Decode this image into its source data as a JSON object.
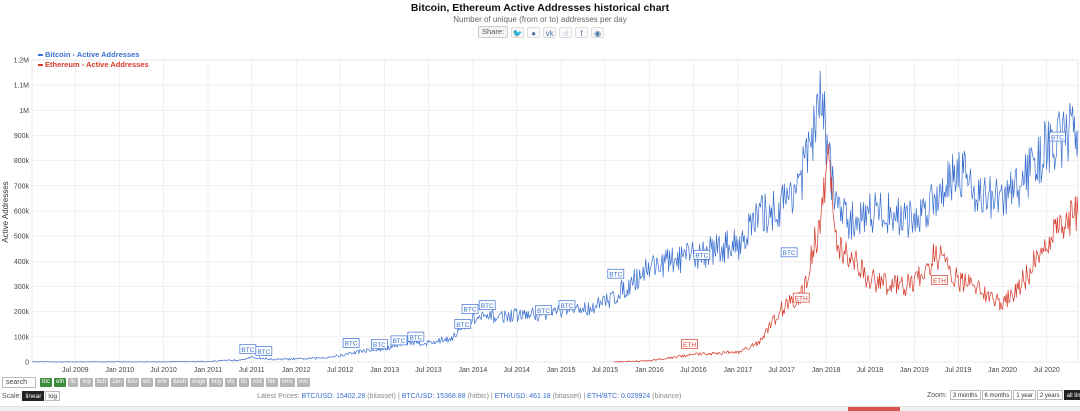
{
  "header": {
    "title": "Bitcoin, Ethereum Active Addresses historical chart",
    "subtitle": "Number of unique (from or to) addresses per day",
    "share_label": "Share:",
    "share_icons": [
      "twitter-icon",
      "reddit-icon",
      "vk-icon",
      "like-icon",
      "facebook-icon",
      "weibo-icon"
    ]
  },
  "chart_data": {
    "type": "line",
    "title": "Bitcoin, Ethereum Active Addresses historical chart",
    "ylabel": "Active Addresses",
    "ylim": [
      0,
      1200000
    ],
    "yticks": [
      0,
      100000,
      200000,
      300000,
      400000,
      500000,
      600000,
      700000,
      800000,
      900000,
      1000000,
      1100000,
      1200000
    ],
    "ytick_labels": [
      "0",
      "100k",
      "200k",
      "300k",
      "400k",
      "500k",
      "600k",
      "700k",
      "800k",
      "900k",
      "1M",
      "1.1M",
      "1.2M"
    ],
    "xlim": [
      "2009-01-03",
      "2020-11-08"
    ],
    "xticks": [
      "2009-07-01",
      "2010-01-01",
      "2010-07-01",
      "2011-01-01",
      "2011-07-01",
      "2012-01-01",
      "2012-07-01",
      "2013-01-01",
      "2013-07-01",
      "2014-01-01",
      "2014-07-01",
      "2015-01-01",
      "2015-07-01",
      "2016-01-01",
      "2016-07-01",
      "2017-01-01",
      "2017-07-01",
      "2018-01-01",
      "2018-07-01",
      "2019-01-01",
      "2019-07-01",
      "2020-01-01",
      "2020-07-01"
    ],
    "xtick_labels": [
      "Jul 2009",
      "Jan 2010",
      "Jul 2010",
      "Jan 2011",
      "Jul 2011",
      "Jan 2012",
      "Jul 2012",
      "Jan 2013",
      "Jul 2013",
      "Jan 2014",
      "Jul 2014",
      "Jan 2015",
      "Jul 2015",
      "Jan 2016",
      "Jul 2016",
      "Jan 2017",
      "Jul 2017",
      "Jan 2018",
      "Jul 2018",
      "Jan 2019",
      "Jul 2019",
      "Jan 2020",
      "Jul 2020"
    ],
    "grid": true,
    "legend_position": "top-left",
    "series": [
      {
        "name": "Bitcoin - Active Addresses",
        "color": "#3a6fd0",
        "points": [
          [
            "2009-01-03",
            0
          ],
          [
            "2010-01-01",
            200
          ],
          [
            "2010-07-01",
            500
          ],
          [
            "2011-01-01",
            2000
          ],
          [
            "2011-05-01",
            8000
          ],
          [
            "2011-07-01",
            18000
          ],
          [
            "2011-10-01",
            10000
          ],
          [
            "2012-01-01",
            12000
          ],
          [
            "2012-04-01",
            15000
          ],
          [
            "2012-07-01",
            25000
          ],
          [
            "2012-10-01",
            45000
          ],
          [
            "2013-01-01",
            50000
          ],
          [
            "2013-04-01",
            80000
          ],
          [
            "2013-07-01",
            75000
          ],
          [
            "2013-10-01",
            95000
          ],
          [
            "2014-01-01",
            170000
          ],
          [
            "2014-04-01",
            180000
          ],
          [
            "2014-07-01",
            185000
          ],
          [
            "2014-10-01",
            190000
          ],
          [
            "2015-01-01",
            205000
          ],
          [
            "2015-04-01",
            210000
          ],
          [
            "2015-07-01",
            235000
          ],
          [
            "2015-10-01",
            300000
          ],
          [
            "2016-01-01",
            380000
          ],
          [
            "2016-04-01",
            400000
          ],
          [
            "2016-07-01",
            420000
          ],
          [
            "2016-10-01",
            450000
          ],
          [
            "2017-01-01",
            470000
          ],
          [
            "2017-04-01",
            580000
          ],
          [
            "2017-07-01",
            620000
          ],
          [
            "2017-10-01",
            760000
          ],
          [
            "2017-12-15",
            1050000
          ],
          [
            "2018-01-01",
            880000
          ],
          [
            "2018-02-15",
            620000
          ],
          [
            "2018-04-01",
            550000
          ],
          [
            "2018-07-01",
            600000
          ],
          [
            "2018-10-01",
            590000
          ],
          [
            "2019-01-01",
            560000
          ],
          [
            "2019-04-01",
            660000
          ],
          [
            "2019-07-01",
            780000
          ],
          [
            "2019-10-01",
            660000
          ],
          [
            "2020-01-01",
            640000
          ],
          [
            "2020-04-01",
            730000
          ],
          [
            "2020-07-01",
            850000
          ],
          [
            "2020-11-08",
            920000
          ]
        ]
      },
      {
        "name": "Ethereum - Active Addresses",
        "color": "#d63a2a",
        "points": [
          [
            "2015-08-07",
            0
          ],
          [
            "2016-01-01",
            5000
          ],
          [
            "2016-07-01",
            30000
          ],
          [
            "2017-01-01",
            40000
          ],
          [
            "2017-04-01",
            80000
          ],
          [
            "2017-07-01",
            210000
          ],
          [
            "2017-10-01",
            280000
          ],
          [
            "2017-12-15",
            600000
          ],
          [
            "2018-01-10",
            800000
          ],
          [
            "2018-02-15",
            460000
          ],
          [
            "2018-04-01",
            430000
          ],
          [
            "2018-07-01",
            330000
          ],
          [
            "2018-10-01",
            300000
          ],
          [
            "2019-01-01",
            310000
          ],
          [
            "2019-04-01",
            430000
          ],
          [
            "2019-07-01",
            320000
          ],
          [
            "2019-10-01",
            290000
          ],
          [
            "2020-01-01",
            230000
          ],
          [
            "2020-04-01",
            330000
          ],
          [
            "2020-07-01",
            470000
          ],
          [
            "2020-11-08",
            590000
          ]
        ]
      }
    ],
    "annotations": [
      {
        "text": "BTC",
        "date": "2011-06-15",
        "value": 25000
      },
      {
        "text": "BTC",
        "date": "2011-08-20",
        "value": 18000
      },
      {
        "text": "BTC",
        "date": "2012-08-15",
        "value": 50000
      },
      {
        "text": "BTC",
        "date": "2012-12-10",
        "value": 45000
      },
      {
        "text": "BTC",
        "date": "2013-03-01",
        "value": 60000
      },
      {
        "text": "BTC",
        "date": "2013-05-10",
        "value": 75000
      },
      {
        "text": "BTC",
        "date": "2013-11-20",
        "value": 125000
      },
      {
        "text": "BTC",
        "date": "2013-12-20",
        "value": 185000
      },
      {
        "text": "BTC",
        "date": "2014-03-01",
        "value": 200000
      },
      {
        "text": "BTC",
        "date": "2014-10-20",
        "value": 180000
      },
      {
        "text": "BTC",
        "date": "2015-01-25",
        "value": 200000
      },
      {
        "text": "BTC",
        "date": "2015-08-15",
        "value": 325000
      },
      {
        "text": "BTC",
        "date": "2016-08-05",
        "value": 400000
      },
      {
        "text": "BTC",
        "date": "2017-08-01",
        "value": 410000
      },
      {
        "text": "BTC",
        "date": "2020-08-15",
        "value": 870000
      },
      {
        "text": "ETH",
        "date": "2016-06-15",
        "value": 45000
      },
      {
        "text": "ETH",
        "date": "2017-09-20",
        "value": 230000
      },
      {
        "text": "ETH",
        "date": "2019-04-15",
        "value": 300000
      }
    ]
  },
  "toolbar": {
    "search_placeholder": "search",
    "coins": [
      "btc",
      "eth",
      "ltc",
      "xrp",
      "bch",
      "zec",
      "bsv",
      "etc",
      "xmr",
      "dash",
      "doge",
      "bcg",
      "vtc",
      "ftc",
      "rdd",
      "blk",
      "nmc",
      "nvc"
    ],
    "active_coins": [
      "btc",
      "eth"
    ]
  },
  "scale": {
    "label": "Scale:",
    "options": [
      "linear",
      "log"
    ],
    "active": "linear"
  },
  "prices": {
    "btcusd_label": "BTC/USD:",
    "btcusd_value": "15402.28",
    "btcusd_source": "(bitasset)",
    "btcusd2_label": "BTC/USD:",
    "btcusd2_value": "15368.88",
    "btcusd2_source": "(hitbtc)",
    "ethusd_label": "ETH/USD:",
    "ethusd_value": "461.18",
    "ethusd_source": "(bitasset)",
    "ethbtc_label": "ETH/BTC:",
    "ethbtc_value": "0.029924",
    "ethbtc_source": "(binance)",
    "prefix": "Latest Prices:"
  },
  "zoom": {
    "label": "Zoom:",
    "options": [
      "3 months",
      "6 months",
      "1 year",
      "2 years",
      "all time"
    ],
    "active": "all time"
  }
}
